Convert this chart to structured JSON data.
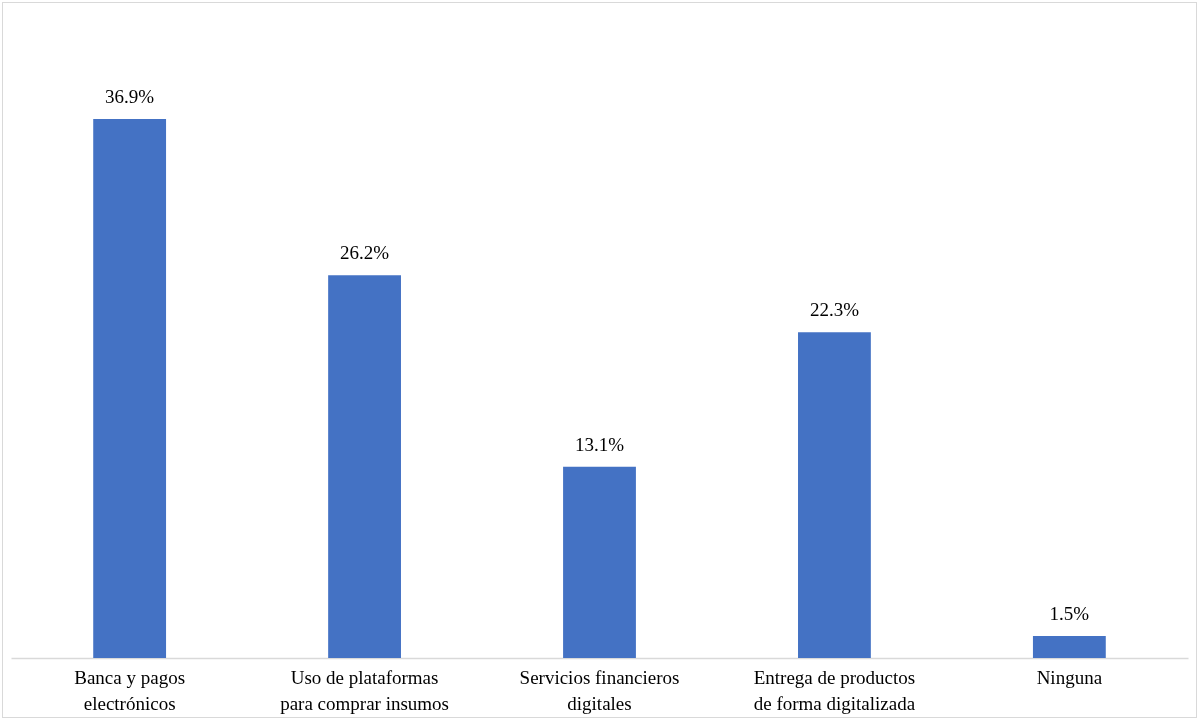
{
  "chart_data": {
    "type": "bar",
    "categories": [
      "Banca y pagos electrónicos",
      "Uso de plataformas para comprar insumos",
      "Servicios financieros digitales",
      "Entrega de productos de forma digitalizada",
      "Ninguna"
    ],
    "values": [
      36.9,
      26.2,
      13.1,
      22.3,
      1.5
    ],
    "value_labels": [
      "36.9%",
      "26.2%",
      "13.1%",
      "22.3%",
      "1.5%"
    ],
    "color": "#4472c4"
  }
}
